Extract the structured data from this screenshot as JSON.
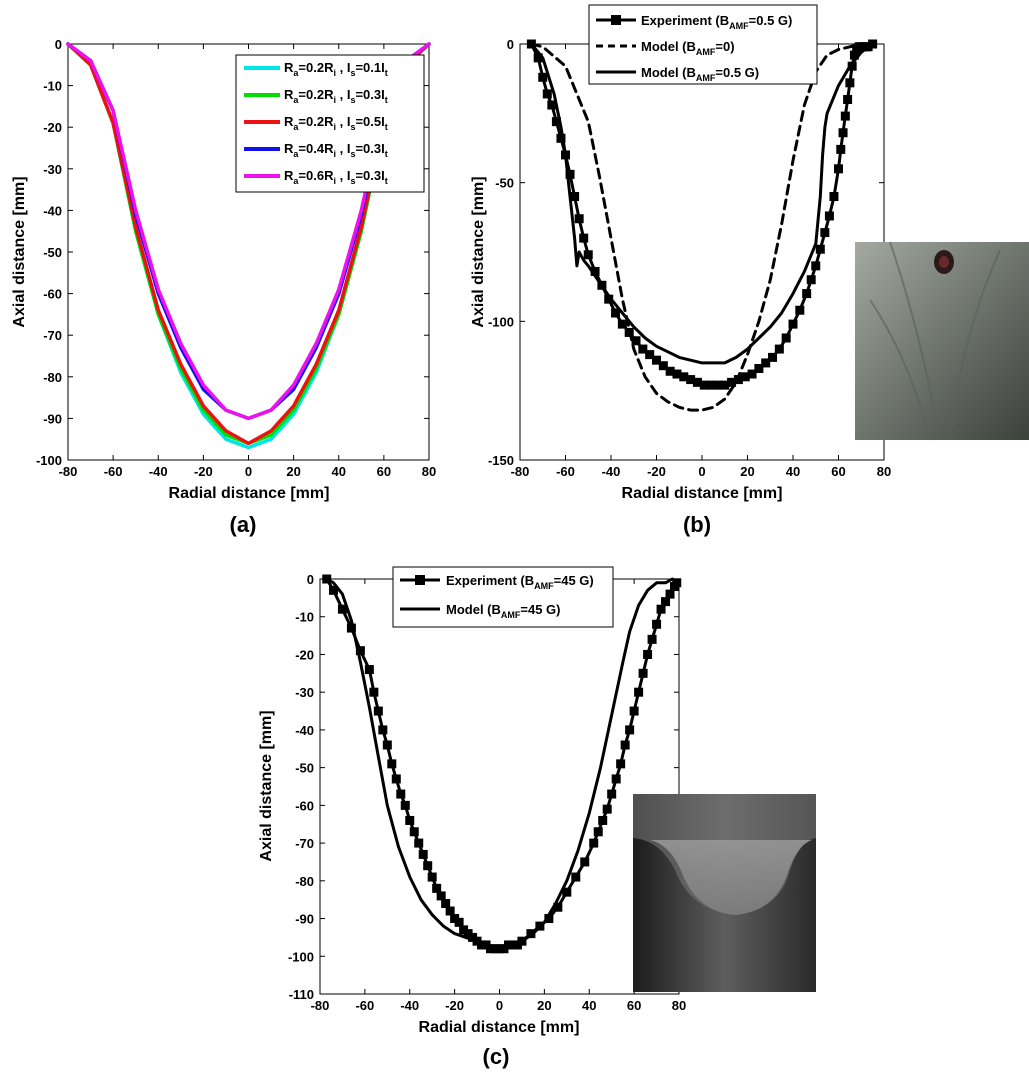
{
  "chart_data": [
    {
      "panel_label": "(a)",
      "type": "line",
      "xlabel": "Radial distance [mm]",
      "ylabel": "Axial distance [mm]",
      "xlim": [
        -80,
        80
      ],
      "ylim": [
        -100,
        0
      ],
      "xticks": [
        -80,
        -60,
        -40,
        -20,
        0,
        20,
        40,
        60,
        80
      ],
      "yticks": [
        0,
        -10,
        -20,
        -30,
        -40,
        -50,
        -60,
        -70,
        -80,
        -90,
        -100
      ],
      "grid": false,
      "legend_position": "top-right",
      "legend_labels": [
        {
          "pre": "R",
          "sub1": "a",
          "mid": "=0.2R",
          "sub2": "i",
          "sep": " , I",
          "sub3": "s",
          "post": "=0.1I",
          "sub4": "t"
        },
        {
          "pre": "R",
          "sub1": "a",
          "mid": "=0.2R",
          "sub2": "i",
          "sep": " , I",
          "sub3": "s",
          "post": "=0.3I",
          "sub4": "t"
        },
        {
          "pre": "R",
          "sub1": "a",
          "mid": "=0.2R",
          "sub2": "i",
          "sep": " , I",
          "sub3": "s",
          "post": "=0.5I",
          "sub4": "t"
        },
        {
          "pre": "R",
          "sub1": "a",
          "mid": "=0.4R",
          "sub2": "i",
          "sep": " , I",
          "sub3": "s",
          "post": "=0.3I",
          "sub4": "t"
        },
        {
          "pre": "R",
          "sub1": "a",
          "mid": "=0.6R",
          "sub2": "i",
          "sep": " , I",
          "sub3": "s",
          "post": "=0.3I",
          "sub4": "t"
        }
      ],
      "series": [
        {
          "color": "#00e5e5",
          "style": "solid",
          "marker": "none",
          "x": [
            -80,
            -70,
            -60,
            -50,
            -40,
            -30,
            -20,
            -10,
            0,
            10,
            20,
            30,
            40,
            50,
            60,
            70,
            80
          ],
          "y": [
            0,
            -5,
            -19,
            -45,
            -65,
            -79,
            -89,
            -95,
            -97,
            -95,
            -89,
            -79,
            -65,
            -45,
            -19,
            -5,
            0
          ]
        },
        {
          "color": "#00dd00",
          "style": "solid",
          "marker": "none",
          "x": [
            -80,
            -70,
            -60,
            -50,
            -40,
            -30,
            -20,
            -10,
            0,
            10,
            20,
            30,
            40,
            50,
            60,
            70,
            80
          ],
          "y": [
            0,
            -5,
            -19,
            -45,
            -65,
            -78,
            -88,
            -94,
            -96,
            -94,
            -88,
            -78,
            -65,
            -45,
            -19,
            -5,
            0
          ]
        },
        {
          "color": "#ee1111",
          "style": "solid",
          "marker": "none",
          "x": [
            -80,
            -70,
            -60,
            -50,
            -40,
            -30,
            -20,
            -10,
            0,
            10,
            20,
            30,
            40,
            50,
            60,
            70,
            80
          ],
          "y": [
            0,
            -5,
            -19,
            -44,
            -64,
            -77,
            -87,
            -93,
            -96,
            -93,
            -87,
            -77,
            -64,
            -44,
            -19,
            -5,
            0
          ]
        },
        {
          "color": "#1111ee",
          "style": "solid",
          "marker": "none",
          "x": [
            -80,
            -70,
            -60,
            -50,
            -40,
            -30,
            -20,
            -10,
            0,
            10,
            20,
            30,
            40,
            50,
            60,
            70,
            80
          ],
          "y": [
            0,
            -4,
            -16,
            -41,
            -60,
            -73,
            -83,
            -88,
            -90,
            -88,
            -83,
            -73,
            -60,
            -41,
            -16,
            -4,
            0
          ]
        },
        {
          "color": "#ee11ee",
          "style": "solid",
          "marker": "none",
          "x": [
            -80,
            -70,
            -60,
            -50,
            -40,
            -30,
            -20,
            -10,
            0,
            10,
            20,
            30,
            40,
            50,
            60,
            70,
            80
          ],
          "y": [
            0,
            -4,
            -16,
            -40,
            -59,
            -72,
            -82,
            -88,
            -90,
            -88,
            -82,
            -72,
            -59,
            -40,
            -16,
            -4,
            0
          ]
        }
      ]
    },
    {
      "panel_label": "(b)",
      "type": "line",
      "xlabel": "Radial distance [mm]",
      "ylabel": "Axial distance [mm]",
      "xlim": [
        -80,
        80
      ],
      "ylim": [
        -150,
        0
      ],
      "xticks": [
        -80,
        -60,
        -40,
        -20,
        0,
        20,
        40,
        60,
        80
      ],
      "yticks": [
        0,
        -50,
        -100,
        -150
      ],
      "grid": false,
      "legend_position": "top-right",
      "legend_labels": [
        {
          "pre": "Experiment (B",
          "sub": "AMF",
          "post": "=0.5 G)"
        },
        {
          "pre": "Model (B",
          "sub": "AMF",
          "post": "=0)"
        },
        {
          "pre": "Model (B",
          "sub": "AMF",
          "post": "=0.5 G)"
        }
      ],
      "series": [
        {
          "color": "#000000",
          "style": "solid",
          "marker": "square",
          "x": [
            -75,
            -72,
            -70,
            -68,
            -66,
            -64,
            -62,
            -60,
            -58,
            -56,
            -54,
            -52,
            -50,
            -47,
            -44,
            -41,
            -38,
            -35,
            -32,
            -29,
            -26,
            -23,
            -20,
            -17,
            -14,
            -11,
            -8,
            -5,
            -2,
            1,
            4,
            7,
            10,
            13,
            16,
            19,
            22,
            25,
            28,
            31,
            34,
            37,
            40,
            43,
            46,
            48,
            50,
            52,
            54,
            56,
            58,
            60,
            61,
            62,
            63,
            64,
            65,
            66,
            67,
            68,
            69,
            70,
            71,
            72,
            73,
            75
          ],
          "y": [
            0,
            -5,
            -12,
            -18,
            -22,
            -28,
            -34,
            -40,
            -47,
            -55,
            -63,
            -70,
            -76,
            -82,
            -87,
            -92,
            -97,
            -101,
            -104,
            -107,
            -110,
            -112,
            -114,
            -116,
            -118,
            -119,
            -120,
            -121,
            -122,
            -123,
            -123,
            -123,
            -123,
            -122,
            -121,
            -120,
            -119,
            -117,
            -115,
            -113,
            -110,
            -106,
            -101,
            -96,
            -90,
            -85,
            -80,
            -74,
            -68,
            -62,
            -55,
            -45,
            -38,
            -32,
            -26,
            -20,
            -14,
            -8,
            -4,
            -2,
            -1,
            -1,
            -1,
            -1,
            -1,
            0
          ]
        },
        {
          "color": "#000000",
          "style": "dashed",
          "marker": "none",
          "x": [
            -75,
            -70,
            -60,
            -50,
            -45,
            -40,
            -35,
            -30,
            -25,
            -20,
            -15,
            -10,
            -5,
            0,
            5,
            10,
            15,
            20,
            25,
            30,
            35,
            40,
            45,
            50,
            55,
            60,
            65,
            70,
            75
          ],
          "y": [
            0,
            -1,
            -8,
            -28,
            -48,
            -70,
            -92,
            -110,
            -120,
            -126,
            -129,
            -131,
            -132,
            -132,
            -131,
            -128,
            -122,
            -112,
            -100,
            -85,
            -65,
            -42,
            -22,
            -10,
            -4,
            -2,
            -1,
            0,
            0
          ]
        },
        {
          "color": "#000000",
          "style": "solid",
          "marker": "none",
          "x": [
            -75,
            -70,
            -65,
            -62,
            -60,
            -58,
            -56,
            -55,
            -54,
            -52,
            -50,
            -45,
            -40,
            -35,
            -30,
            -25,
            -20,
            -15,
            -10,
            -5,
            0,
            5,
            10,
            15,
            20,
            25,
            30,
            35,
            40,
            45,
            50,
            52,
            53,
            54,
            55,
            60,
            65,
            70,
            75
          ],
          "y": [
            0,
            -5,
            -18,
            -30,
            -40,
            -55,
            -70,
            -80,
            -75,
            -78,
            -80,
            -86,
            -92,
            -97,
            -102,
            -106,
            -109,
            -111,
            -113,
            -114,
            -115,
            -115,
            -115,
            -113,
            -110,
            -106,
            -102,
            -97,
            -90,
            -82,
            -72,
            -55,
            -40,
            -30,
            -25,
            -15,
            -8,
            -3,
            0
          ]
        }
      ]
    },
    {
      "panel_label": "(c)",
      "type": "line",
      "xlabel": "Radial distance [mm]",
      "ylabel": "Axial distance [mm]",
      "xlim": [
        -80,
        80
      ],
      "ylim": [
        -110,
        0
      ],
      "xticks": [
        -80,
        -60,
        -40,
        -20,
        0,
        20,
        40,
        60,
        80
      ],
      "yticks": [
        0,
        -10,
        -20,
        -30,
        -40,
        -50,
        -60,
        -70,
        -80,
        -90,
        -100,
        -110
      ],
      "grid": false,
      "legend_position": "top-right",
      "legend_labels": [
        {
          "pre": "Experiment (B",
          "sub": "AMF",
          "post": "=45 G)"
        },
        {
          "pre": "Model (B",
          "sub": "AMF",
          "post": "=45 G)"
        }
      ],
      "series": [
        {
          "color": "#000000",
          "style": "solid",
          "marker": "square",
          "x": [
            -77,
            -74,
            -70,
            -66,
            -62,
            -58,
            -56,
            -54,
            -52,
            -50,
            -48,
            -46,
            -44,
            -42,
            -40,
            -38,
            -36,
            -34,
            -32,
            -30,
            -28,
            -26,
            -24,
            -22,
            -20,
            -18,
            -16,
            -14,
            -12,
            -10,
            -8,
            -6,
            -4,
            -2,
            0,
            2,
            4,
            6,
            8,
            10,
            14,
            18,
            22,
            26,
            30,
            34,
            38,
            42,
            44,
            46,
            48,
            50,
            52,
            54,
            56,
            58,
            60,
            62,
            64,
            66,
            68,
            70,
            72,
            74,
            76,
            78,
            79
          ],
          "y": [
            0,
            -3,
            -8,
            -13,
            -19,
            -24,
            -30,
            -35,
            -40,
            -44,
            -49,
            -53,
            -57,
            -60,
            -64,
            -67,
            -70,
            -73,
            -76,
            -79,
            -82,
            -84,
            -86,
            -88,
            -90,
            -91,
            -93,
            -94,
            -95,
            -96,
            -97,
            -97,
            -98,
            -98,
            -98,
            -98,
            -97,
            -97,
            -97,
            -96,
            -94,
            -92,
            -90,
            -87,
            -83,
            -79,
            -75,
            -70,
            -67,
            -64,
            -61,
            -57,
            -53,
            -49,
            -44,
            -40,
            -35,
            -30,
            -25,
            -20,
            -16,
            -12,
            -8,
            -6,
            -4,
            -2,
            -1
          ]
        },
        {
          "color": "#000000",
          "style": "solid",
          "marker": "none",
          "x": [
            -77,
            -74,
            -70,
            -66,
            -62,
            -58,
            -54,
            -50,
            -45,
            -40,
            -35,
            -30,
            -25,
            -20,
            -15,
            -10,
            -5,
            0,
            5,
            10,
            15,
            20,
            25,
            30,
            35,
            40,
            45,
            50,
            55,
            58,
            62,
            66,
            70,
            74,
            77
          ],
          "y": [
            0,
            -1,
            -4,
            -11,
            -22,
            -34,
            -47,
            -60,
            -71,
            -79,
            -85,
            -89,
            -92,
            -94,
            -95,
            -96,
            -97,
            -98,
            -97,
            -96,
            -94,
            -91,
            -86,
            -80,
            -72,
            -62,
            -50,
            -36,
            -22,
            -14,
            -7,
            -3,
            -1,
            -1,
            0
          ]
        }
      ]
    }
  ]
}
